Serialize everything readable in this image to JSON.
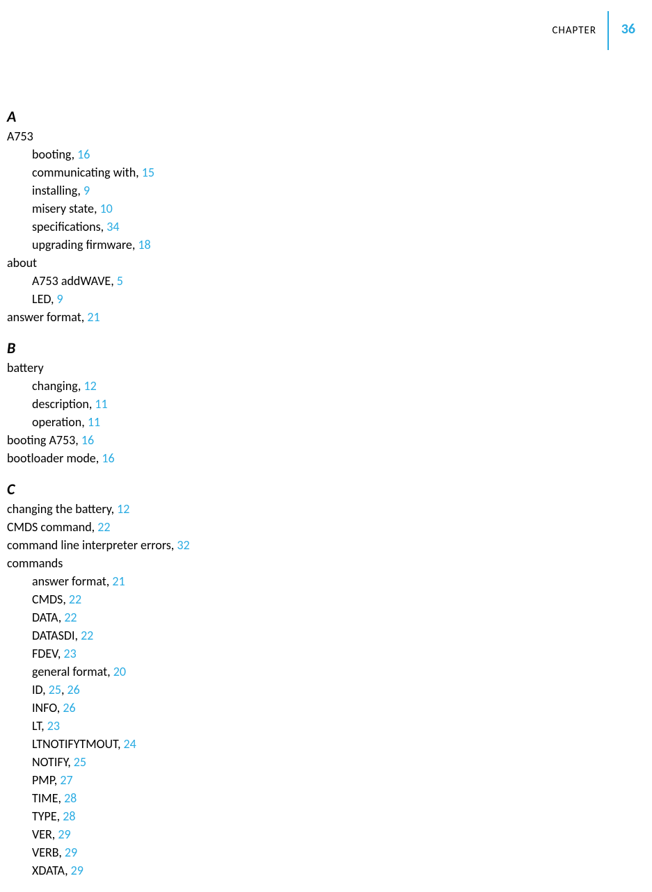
{
  "header": {
    "chapter_label": "CHAPTER",
    "chapter_number": "36"
  },
  "colors": {
    "link": "#29abe2",
    "text": "#000000",
    "background": "#ffffff"
  },
  "index": {
    "sections": [
      {
        "letter": "A",
        "entries": [
          {
            "text": "A753",
            "pages": [],
            "level": 0
          },
          {
            "text": "booting,",
            "pages": [
              "16"
            ],
            "level": 1
          },
          {
            "text": "communicating with,",
            "pages": [
              "15"
            ],
            "level": 1
          },
          {
            "text": "installing,",
            "pages": [
              "9"
            ],
            "level": 1
          },
          {
            "text": "misery state,",
            "pages": [
              "10"
            ],
            "level": 1
          },
          {
            "text": "specifications,",
            "pages": [
              "34"
            ],
            "level": 1
          },
          {
            "text": "upgrading firmware,",
            "pages": [
              "18"
            ],
            "level": 1
          },
          {
            "text": "about",
            "pages": [],
            "level": 0
          },
          {
            "text": "A753 addWAVE,",
            "pages": [
              "5"
            ],
            "level": 1
          },
          {
            "text": "LED,",
            "pages": [
              "9"
            ],
            "level": 1
          },
          {
            "text": "answer format,",
            "pages": [
              "21"
            ],
            "level": 0
          }
        ]
      },
      {
        "letter": "B",
        "entries": [
          {
            "text": "battery",
            "pages": [],
            "level": 0
          },
          {
            "text": "changing,",
            "pages": [
              "12"
            ],
            "level": 1
          },
          {
            "text": "description,",
            "pages": [
              "11"
            ],
            "level": 1
          },
          {
            "text": "operation,",
            "pages": [
              "11"
            ],
            "level": 1
          },
          {
            "text": "booting A753,",
            "pages": [
              "16"
            ],
            "level": 0
          },
          {
            "text": "bootloader mode,",
            "pages": [
              "16"
            ],
            "level": 0
          }
        ]
      },
      {
        "letter": "C",
        "entries": [
          {
            "text": "changing the battery,",
            "pages": [
              "12"
            ],
            "level": 0
          },
          {
            "text": "CMDS command,",
            "pages": [
              "22"
            ],
            "level": 0
          },
          {
            "text": "command line interpreter errors,",
            "pages": [
              "32"
            ],
            "level": 0
          },
          {
            "text": "commands",
            "pages": [],
            "level": 0
          },
          {
            "text": "answer format,",
            "pages": [
              "21"
            ],
            "level": 1
          },
          {
            "text": "CMDS,",
            "pages": [
              "22"
            ],
            "level": 1
          },
          {
            "text": "DATA,",
            "pages": [
              "22"
            ],
            "level": 1
          },
          {
            "text": "DATASDI,",
            "pages": [
              "22"
            ],
            "level": 1
          },
          {
            "text": "FDEV,",
            "pages": [
              "23"
            ],
            "level": 1
          },
          {
            "text": "general format,",
            "pages": [
              "20"
            ],
            "level": 1
          },
          {
            "text": "ID,",
            "pages": [
              "25",
              "26"
            ],
            "level": 1
          },
          {
            "text": "INFO,",
            "pages": [
              "26"
            ],
            "level": 1
          },
          {
            "text": "LT,",
            "pages": [
              "23"
            ],
            "level": 1
          },
          {
            "text": "LTNOTIFYTMOUT,",
            "pages": [
              "24"
            ],
            "level": 1
          },
          {
            "text": "NOTIFY,",
            "pages": [
              "25"
            ],
            "level": 1
          },
          {
            "text": "PMP,",
            "pages": [
              "27"
            ],
            "level": 1
          },
          {
            "text": "TIME,",
            "pages": [
              "28"
            ],
            "level": 1
          },
          {
            "text": "TYPE,",
            "pages": [
              "28"
            ],
            "level": 1
          },
          {
            "text": "VER,",
            "pages": [
              "29"
            ],
            "level": 1
          },
          {
            "text": "VERB,",
            "pages": [
              "29"
            ],
            "level": 1
          },
          {
            "text": "XDATA,",
            "pages": [
              "29"
            ],
            "level": 1
          }
        ]
      }
    ]
  }
}
